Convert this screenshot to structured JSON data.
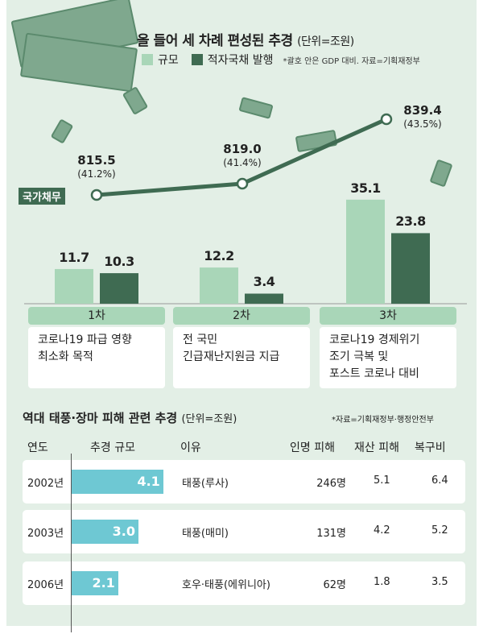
{
  "chart_data": {
    "type": "bar+line",
    "title": "올 들어 세 차례 편성된 추경",
    "unit": "(단위=조원)",
    "legend": [
      "규모",
      "적자국채 발행"
    ],
    "note": "*괄호 안은 GDP 대비. 자료=기획재정부",
    "categories": [
      "1차",
      "2차",
      "3차"
    ],
    "series": [
      {
        "name": "규모",
        "values": [
          11.7,
          12.2,
          35.1
        ],
        "labels": [
          "11.7",
          "12.2",
          "35.1"
        ],
        "color": "#a9d6b8"
      },
      {
        "name": "적자국채 발행",
        "values": [
          10.3,
          3.4,
          23.8
        ],
        "labels": [
          "10.3",
          "3.4",
          "23.8"
        ],
        "color": "#3f6b52"
      }
    ],
    "line": {
      "name": "국가채무",
      "values": [
        815.5,
        819.0,
        839.4
      ],
      "labels": [
        "815.5",
        "819.0",
        "839.4"
      ],
      "gdp_ratio": [
        "(41.2%)",
        "(41.4%)",
        "(43.5%)"
      ],
      "color": "#3f6b52"
    },
    "descriptions": [
      "코로나19 파급 영향\n최소화 목적",
      "전 국민\n긴급재난지원금 지급",
      "코로나19 경제위기\n조기 극복 및\n포스트 코로나 대비"
    ]
  },
  "table": {
    "title": "역대 태풍·장마 피해 관련 추경",
    "unit": "(단위=조원)",
    "source": "*자료=기획재정부·행정안전부",
    "headers": [
      "연도",
      "추경 규모",
      "이유",
      "인명 피해",
      "재산 피해",
      "복구비"
    ],
    "rows": [
      {
        "year": "2002년",
        "size": 4.1,
        "size_label": "4.1",
        "reason": "태풍(루사)",
        "casualties": "246명",
        "property": "5.1",
        "recovery": "6.4"
      },
      {
        "year": "2003년",
        "size": 3.0,
        "size_label": "3.0",
        "reason": "태풍(매미)",
        "casualties": "131명",
        "property": "4.2",
        "recovery": "5.2"
      },
      {
        "year": "2006년",
        "size": 2.1,
        "size_label": "2.1",
        "reason": "호우·태풍(에위니아)",
        "casualties": "62명",
        "property": "1.8",
        "recovery": "3.5"
      }
    ],
    "bar_color": "#6ec8d3"
  }
}
